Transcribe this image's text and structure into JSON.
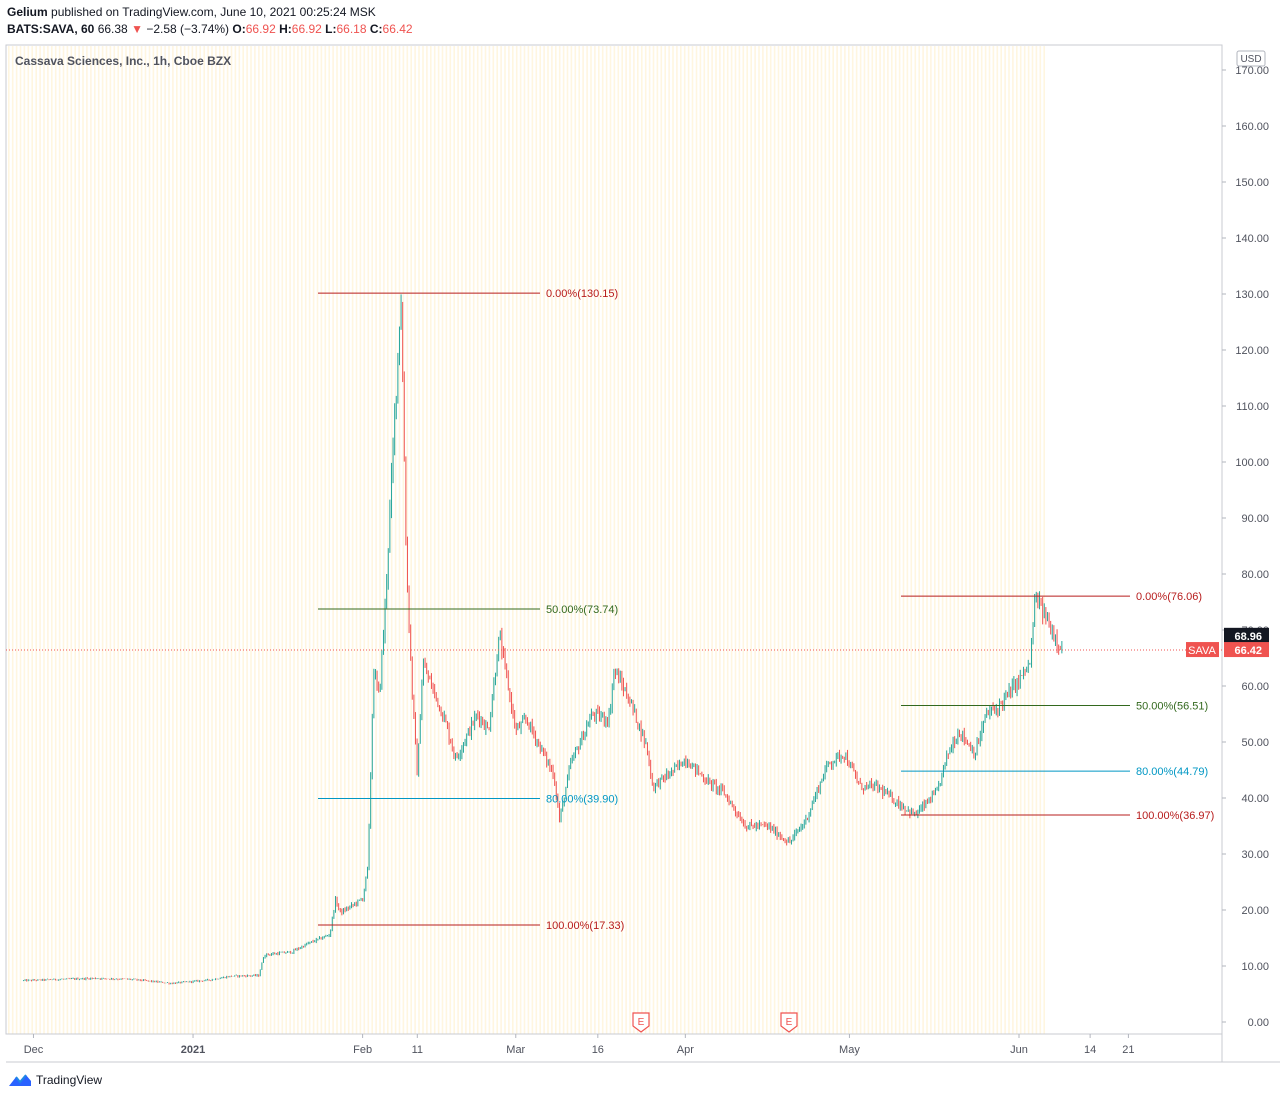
{
  "header": {
    "author": "Gelium",
    "published_text": "published on TradingView.com, June 10, 2021 00:25:24 MSK",
    "symbol": "BATS:SAVA, 60",
    "last": "66.38",
    "change": "−2.58 (−3.74%)",
    "o_label": "O:",
    "o": "66.92",
    "h_label": "H:",
    "h": "66.92",
    "l_label": "L:",
    "l": "66.18",
    "c_label": "C:",
    "c": "66.42"
  },
  "footer": {
    "brand": "TradingView"
  },
  "colors": {
    "up": "#26a69a",
    "down": "#ef5350",
    "fib_red": "#b71c1c",
    "fib_green": "#33691e",
    "fib_blue": "#0097c4",
    "session_band": "#fff6e0"
  },
  "chart_data": {
    "type": "candlestick",
    "title": "Cassava Sciences, Inc., 1h, Cboe BZX",
    "currency": "USD",
    "y_ticks": [
      "170.00",
      "160.00",
      "150.00",
      "140.00",
      "130.00",
      "120.00",
      "110.00",
      "100.00",
      "90.00",
      "80.00",
      "70.00",
      "60.00",
      "50.00",
      "40.00",
      "30.00",
      "20.00",
      "10.00",
      "0.00"
    ],
    "ylim": [
      0,
      172
    ],
    "x_ticks": [
      "Dec",
      "2021",
      "Feb",
      "11",
      "Mar",
      "16",
      "Apr",
      "May",
      "Jun",
      "14",
      "21"
    ],
    "price_path": [
      [
        "Dec 1",
        7.4
      ],
      [
        "Dec 7",
        7.6
      ],
      [
        "Dec 14",
        7.8
      ],
      [
        "Dec 21",
        7.6
      ],
      [
        "Dec 28",
        6.9
      ],
      [
        "Jan 4",
        7.5
      ],
      [
        "Jan 8",
        8.2
      ],
      [
        "Jan 13",
        8.3
      ],
      [
        "Jan 14",
        12.0
      ],
      [
        "Jan 19",
        12.5
      ],
      [
        "Jan 22",
        14.0
      ],
      [
        "Jan 26",
        15.6
      ],
      [
        "Jan 27",
        21.8
      ],
      [
        "Jan 28",
        19.5
      ],
      [
        "Feb 1",
        22.0
      ],
      [
        "Feb 2",
        28.0
      ],
      [
        "Feb 3",
        63.0
      ],
      [
        "Feb 4",
        58.0
      ],
      [
        "Feb 5",
        72.0
      ],
      [
        "Feb 8",
        130.15
      ],
      [
        "Feb 9",
        82.0
      ],
      [
        "Feb 10",
        60.0
      ],
      [
        "Feb 11",
        44.0
      ],
      [
        "Feb 12",
        64.0
      ],
      [
        "Feb 16",
        54.0
      ],
      [
        "Feb 18",
        47.0
      ],
      [
        "Feb 22",
        55.0
      ],
      [
        "Feb 24",
        52.0
      ],
      [
        "Feb 26",
        69.0
      ],
      [
        "Mar 1",
        52.0
      ],
      [
        "Mar 3",
        54.0
      ],
      [
        "Mar 5",
        50.0
      ],
      [
        "Mar 8",
        44.0
      ],
      [
        "Mar 9",
        36.0
      ],
      [
        "Mar 11",
        46.0
      ],
      [
        "Mar 15",
        55.0
      ],
      [
        "Mar 18",
        54.0
      ],
      [
        "Mar 19",
        63.0
      ],
      [
        "Mar 22",
        57.0
      ],
      [
        "Mar 25",
        49.0
      ],
      [
        "Mar 26",
        42.0
      ],
      [
        "Mar 30",
        45.0
      ],
      [
        "Apr 1",
        47.0
      ],
      [
        "Apr 5",
        43.0
      ],
      [
        "Apr 8",
        41.0
      ],
      [
        "Apr 12",
        35.0
      ],
      [
        "Apr 16",
        35.0
      ],
      [
        "Apr 20",
        32.0
      ],
      [
        "Apr 23",
        36.0
      ],
      [
        "Apr 27",
        46.0
      ],
      [
        "Apr 30",
        48.0
      ],
      [
        "May 3",
        42.0
      ],
      [
        "May 6",
        42.0
      ],
      [
        "May 10",
        39.0
      ],
      [
        "May 13",
        36.97
      ],
      [
        "May 17",
        41.0
      ],
      [
        "May 19",
        48.0
      ],
      [
        "May 21",
        52.0
      ],
      [
        "May 24",
        48.0
      ],
      [
        "May 26",
        55.0
      ],
      [
        "May 28",
        56.0
      ],
      [
        "Jun 1",
        61.0
      ],
      [
        "Jun 3",
        64.0
      ],
      [
        "Jun 4",
        76.06
      ],
      [
        "Jun 7",
        70.0
      ],
      [
        "Jun 9",
        66.42
      ]
    ],
    "fibonacci": [
      {
        "label": "0.00%(130.15)",
        "value": 130.15,
        "color": "#b71c1c"
      },
      {
        "label": "50.00%(73.74)",
        "value": 73.74,
        "color": "#33691e"
      },
      {
        "label": "80.00%(39.90)",
        "value": 39.9,
        "color": "#0097c4"
      },
      {
        "label": "100.00%(17.33)",
        "value": 17.33,
        "color": "#b71c1c"
      },
      {
        "label": "0.00%(76.06)",
        "value": 76.06,
        "color": "#b71c1c"
      },
      {
        "label": "50.00%(56.51)",
        "value": 56.51,
        "color": "#33691e"
      },
      {
        "label": "80.00%(44.79)",
        "value": 44.79,
        "color": "#0097c4"
      },
      {
        "label": "100.00%(36.97)",
        "value": 36.97,
        "color": "#b71c1c"
      }
    ],
    "price_labels": [
      {
        "text": "68.96",
        "value": 68.96,
        "color": "#131722"
      },
      {
        "symbol": "SAVA",
        "text": "66.42",
        "value": 66.42,
        "color": "#ef5350"
      }
    ],
    "earnings_markers": [
      "E",
      "E"
    ],
    "grid": false,
    "session_bands": true
  }
}
